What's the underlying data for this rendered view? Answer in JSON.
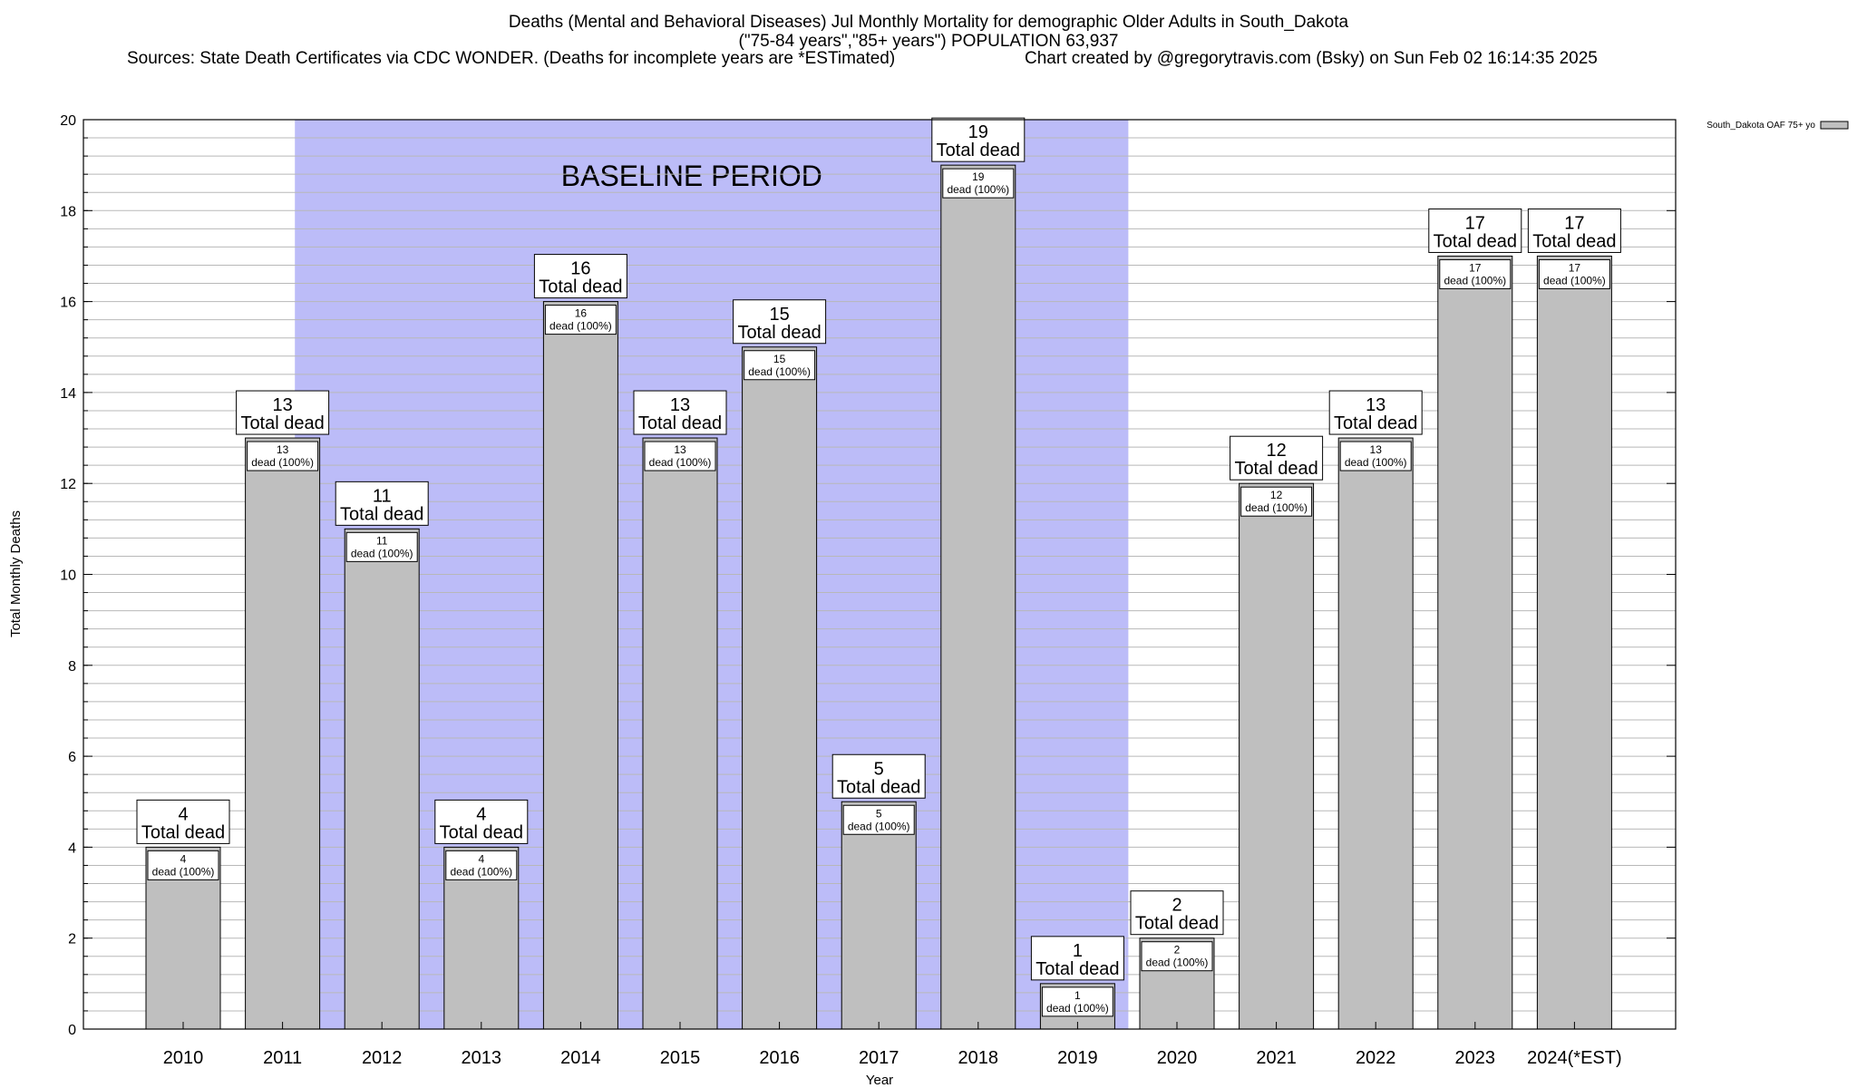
{
  "header": {
    "title_line1": "Deaths (Mental and Behavioral Diseases) Jul Monthly Mortality for demographic Older Adults in South_Dakota",
    "title_line2": "(\"75-84 years\",\"85+ years\") POPULATION 63,937",
    "sources": "Sources: State Death Certificates via CDC WONDER. (Deaths for incomplete years are *ESTimated)",
    "credit": "Chart created by @gregorytravis.com (Bsky) on Sun Feb 02 16:14:35 2025"
  },
  "colors": {
    "bar_fill": "#bfbfbf",
    "baseline_band": "#bcbcf8",
    "grid": "#b8b8b8"
  },
  "chart_data": {
    "type": "bar",
    "title": "Deaths (Mental and Behavioral Diseases) Jul Monthly Mortality for demographic Older Adults in South_Dakota",
    "xlabel": "Year",
    "ylabel": "Total Monthly Deaths",
    "ylim": [
      0,
      20
    ],
    "yticks": [
      0,
      2,
      4,
      6,
      8,
      10,
      12,
      14,
      16,
      18,
      20
    ],
    "grid": true,
    "legend_position": "top-right",
    "categories": [
      "2010",
      "2011",
      "2012",
      "2013",
      "2014",
      "2015",
      "2016",
      "2017",
      "2018",
      "2019",
      "2020",
      "2021",
      "2022",
      "2023",
      "2024(*EST)"
    ],
    "series": [
      {
        "name": "South_Dakota OAF 75+ yo",
        "values": [
          4,
          13,
          11,
          4,
          16,
          13,
          15,
          5,
          19,
          1,
          2,
          12,
          13,
          17,
          17
        ]
      }
    ],
    "total_label": "Total dead",
    "inner_label_suffix": "dead (100%)",
    "annotation": {
      "text": "BASELINE PERIOD",
      "from_category": "2012",
      "to_category": "2019"
    }
  }
}
